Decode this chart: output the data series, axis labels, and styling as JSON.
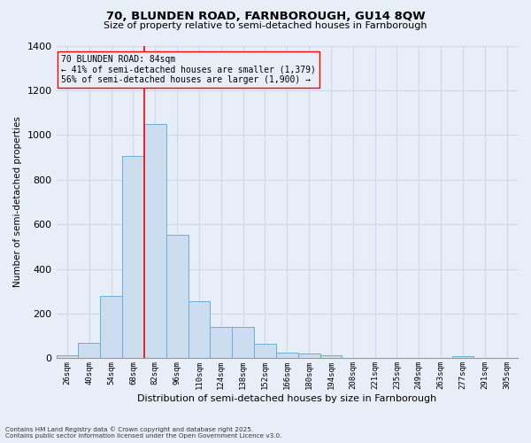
{
  "title_line1": "70, BLUNDEN ROAD, FARNBOROUGH, GU14 8QW",
  "title_line2": "Size of property relative to semi-detached houses in Farnborough",
  "xlabel": "Distribution of semi-detached houses by size in Farnborough",
  "ylabel": "Number of semi-detached properties",
  "categories": [
    "26sqm",
    "40sqm",
    "54sqm",
    "68sqm",
    "82sqm",
    "96sqm",
    "110sqm",
    "124sqm",
    "138sqm",
    "152sqm",
    "166sqm",
    "180sqm",
    "194sqm",
    "208sqm",
    "221sqm",
    "235sqm",
    "249sqm",
    "263sqm",
    "277sqm",
    "291sqm",
    "305sqm"
  ],
  "values": [
    15,
    68,
    280,
    905,
    1048,
    555,
    255,
    140,
    140,
    65,
    27,
    22,
    15,
    0,
    0,
    0,
    0,
    0,
    8,
    0,
    0
  ],
  "bar_color": "#ccddf0",
  "bar_edge_color": "#6baed6",
  "property_label": "70 BLUNDEN ROAD: 84sqm",
  "annotation_line2": "← 41% of semi-detached houses are smaller (1,379)",
  "annotation_line3": "56% of semi-detached houses are larger (1,900) →",
  "vline_color": "red",
  "box_color": "red",
  "background_color": "#e8eef8",
  "grid_color": "#d0d8e8",
  "ylim": [
    0,
    1400
  ],
  "footer_line1": "Contains HM Land Registry data © Crown copyright and database right 2025.",
  "footer_line2": "Contains public sector information licensed under the Open Government Licence v3.0."
}
